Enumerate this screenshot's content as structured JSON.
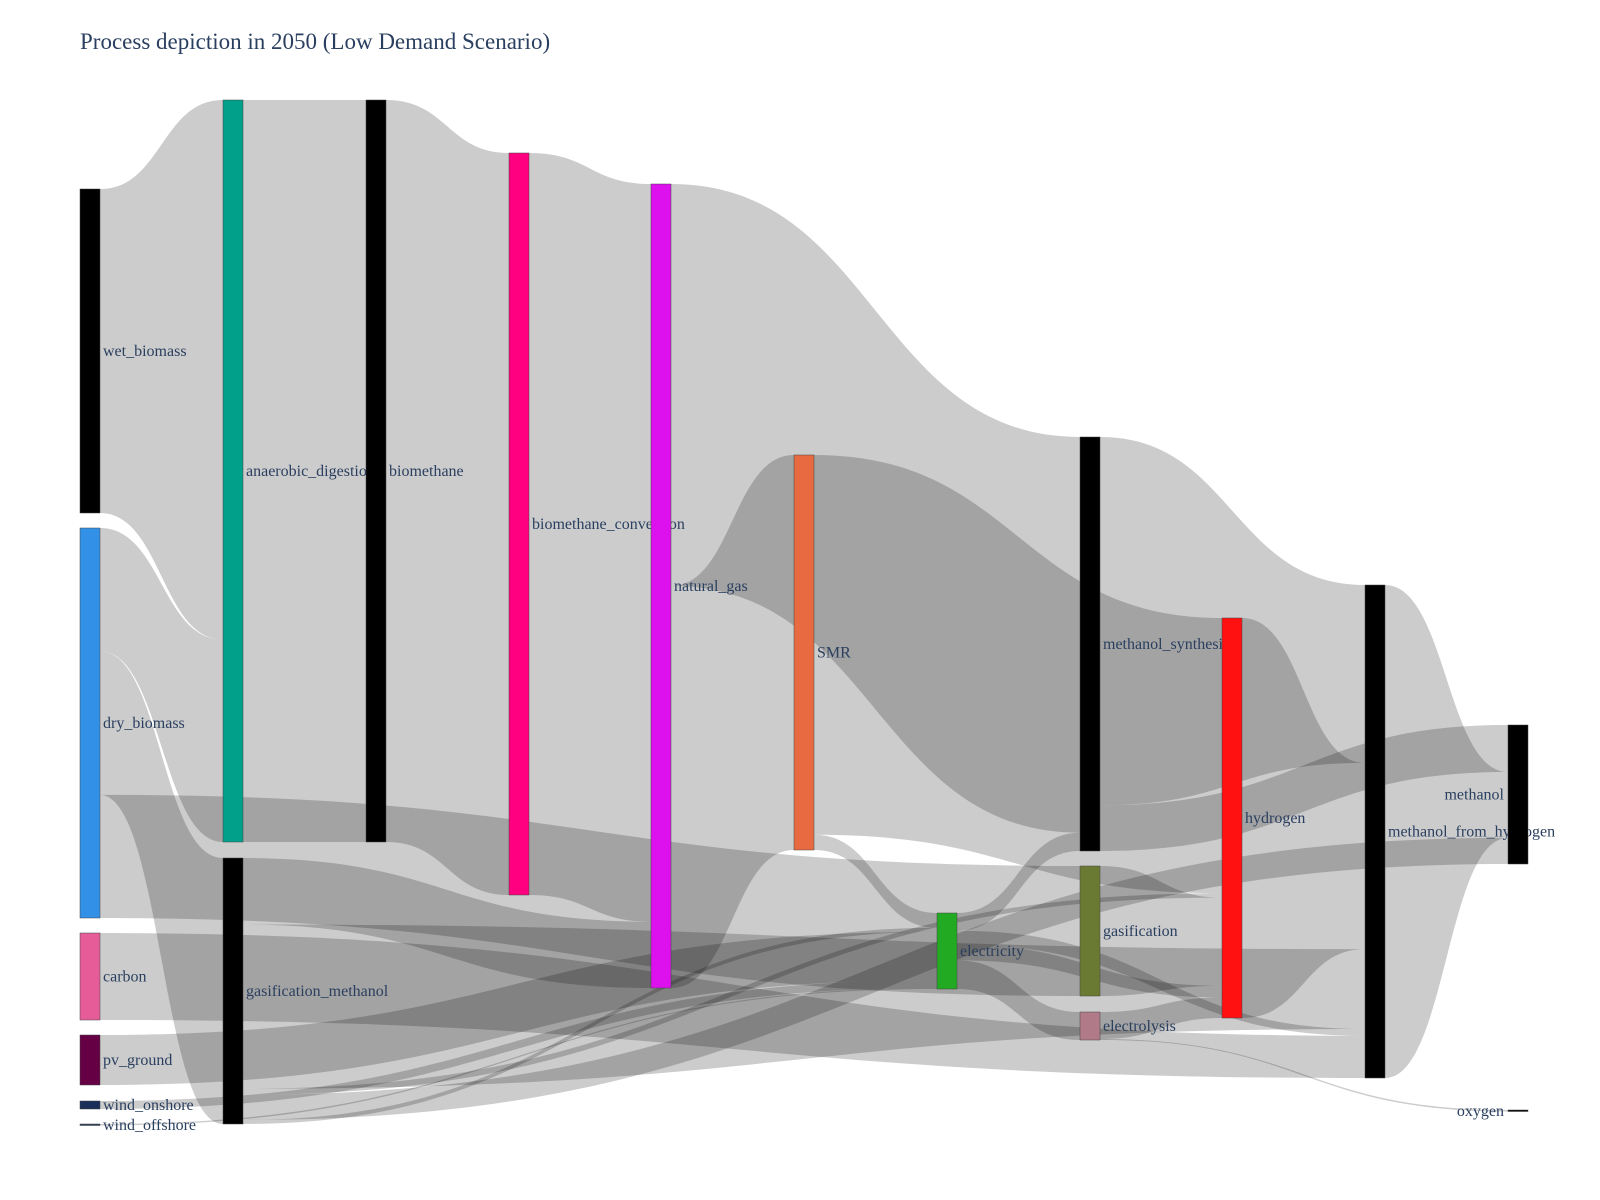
{
  "title": "Process depiction in 2050 (Low Demand Scenario)",
  "link_color": "#000000",
  "nodes": [
    {
      "id": "wet_biomass",
      "label": "wet_biomass",
      "color": "#000000",
      "label_side": "right"
    },
    {
      "id": "dry_biomass",
      "label": "dry_biomass",
      "color": "#3290e6",
      "label_side": "right"
    },
    {
      "id": "carbon",
      "label": "carbon",
      "color": "#e65c99",
      "label_side": "right"
    },
    {
      "id": "pv_ground",
      "label": "pv_ground",
      "color": "#660044",
      "label_side": "right"
    },
    {
      "id": "wind_onshore",
      "label": "wind_onshore",
      "color": "#1a2f5a",
      "label_side": "right"
    },
    {
      "id": "wind_offshore",
      "label": "wind_offshore",
      "color": "#2a3f5f",
      "label_side": "right"
    },
    {
      "id": "anaerobic_digestion",
      "label": "anaerobic_digestion",
      "color": "#00a08a",
      "label_side": "right"
    },
    {
      "id": "gasification_methanol",
      "label": "gasification_methanol",
      "color": "#000000",
      "label_side": "right"
    },
    {
      "id": "biomethane",
      "label": "biomethane",
      "color": "#000000",
      "label_side": "right"
    },
    {
      "id": "biomethane_conversion",
      "label": "biomethane_conversion",
      "color": "#ff0080",
      "label_side": "right"
    },
    {
      "id": "natural_gas",
      "label": "natural_gas",
      "color": "#dd11ee",
      "label_side": "right"
    },
    {
      "id": "SMR",
      "label": "SMR",
      "color": "#e86a40",
      "label_side": "right"
    },
    {
      "id": "electricity",
      "label": "electricity",
      "color": "#22aa22",
      "label_side": "right"
    },
    {
      "id": "methanol_synthesis",
      "label": "methanol_synthesis",
      "color": "#000000",
      "label_side": "right"
    },
    {
      "id": "gasification",
      "label": "gasification",
      "color": "#6b7a33",
      "label_side": "right"
    },
    {
      "id": "electrolysis",
      "label": "electrolysis",
      "color": "#b07a88",
      "label_side": "right"
    },
    {
      "id": "hydrogen",
      "label": "hydrogen",
      "color": "#ff1111",
      "label_side": "right"
    },
    {
      "id": "methanol_from_hydrogen",
      "label": "methanol_from_hydrogen",
      "color": "#000000",
      "label_side": "right"
    },
    {
      "id": "methanol",
      "label": "methanol",
      "color": "#000000",
      "label_side": "left"
    },
    {
      "id": "oxygen",
      "label": "oxygen",
      "color": "#000000",
      "label_side": "left"
    }
  ],
  "links": [
    {
      "source": "wet_biomass",
      "target": "anaerobic_digestion",
      "value": 32
    },
    {
      "source": "dry_biomass",
      "target": "anaerobic_digestion",
      "value": 12
    },
    {
      "source": "dry_biomass",
      "target": "gasification",
      "value": 12
    },
    {
      "source": "dry_biomass",
      "target": "gasification_methanol",
      "value": 14
    },
    {
      "source": "carbon",
      "target": "methanol_from_hydrogen",
      "value": 8.6
    },
    {
      "source": "pv_ground",
      "target": "electricity",
      "value": 4.9
    },
    {
      "source": "wind_onshore",
      "target": "electricity",
      "value": 0.8
    },
    {
      "source": "wind_offshore",
      "target": "electricity",
      "value": 0.1
    },
    {
      "source": "anaerobic_digestion",
      "target": "biomethane",
      "value": 73.5
    },
    {
      "source": "biomethane",
      "target": "biomethane_conversion",
      "value": 73.5
    },
    {
      "source": "biomethane_conversion",
      "target": "natural_gas",
      "value": 73.5
    },
    {
      "source": "gasification_methanol",
      "target": "methanol",
      "value": 2.5
    },
    {
      "source": "gasification_methanol",
      "target": "hydrogen",
      "value": 0.6
    },
    {
      "source": "gasification_methanol",
      "target": "electricity",
      "value": 0.4
    },
    {
      "source": "gasification_methanol",
      "target": "natural_gas",
      "value": 6.6
    },
    {
      "source": "gasification_methanol",
      "target": "methanol_from_hydrogen",
      "value": 16.3
    },
    {
      "source": "natural_gas",
      "target": "methanol_synthesis",
      "value": 39
    },
    {
      "source": "natural_gas",
      "target": "SMR",
      "value": 39
    },
    {
      "source": "SMR",
      "target": "hydrogen",
      "value": 37.5
    },
    {
      "source": "SMR",
      "target": "electricity",
      "value": 1.5
    },
    {
      "source": "electricity",
      "target": "methanol_synthesis",
      "value": 1.8
    },
    {
      "source": "electricity",
      "target": "hydrogen",
      "value": 1.6
    },
    {
      "source": "electricity",
      "target": "electrolysis",
      "value": 2.9
    },
    {
      "source": "electricity",
      "target": "methanol_from_hydrogen",
      "value": 1.4
    },
    {
      "source": "methanol_synthesis",
      "target": "methanol",
      "value": 4.5
    },
    {
      "source": "methanol_synthesis",
      "target": "methanol_from_hydrogen",
      "value": 36.3
    },
    {
      "source": "gasification",
      "target": "hydrogen",
      "value": 12
    },
    {
      "source": "electrolysis",
      "target": "hydrogen",
      "value": 2.8
    },
    {
      "source": "electrolysis",
      "target": "oxygen",
      "value": 0.1
    },
    {
      "source": "hydrogen",
      "target": "methanol_from_hydrogen",
      "value": 38
    },
    {
      "source": "methanol_from_hydrogen",
      "target": "methanol",
      "value": 6.3
    }
  ]
}
